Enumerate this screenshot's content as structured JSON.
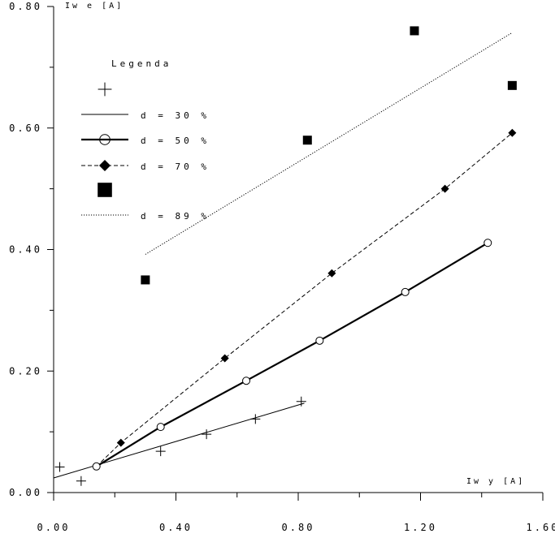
{
  "chart_data": {
    "type": "scatter",
    "title": "",
    "xlabel": "Iw y [A]",
    "ylabel": "Iw e [A]",
    "xlim": [
      0.0,
      1.6
    ],
    "ylim": [
      0.0,
      0.8
    ],
    "x_ticks": [
      "0.00",
      "0.40",
      "0.80",
      "1.20",
      "1.60"
    ],
    "y_ticks": [
      "0.00",
      "0.20",
      "0.40",
      "0.60",
      "0.80"
    ],
    "grid": false,
    "legend_position": "top-left",
    "legend": {
      "title": "Legenda",
      "entries": [
        "d = 30 %",
        "d = 50 %",
        "d = 70 %",
        "d = 89 %"
      ]
    },
    "series": [
      {
        "name": "d = 30 %",
        "marker": "plus",
        "line": "solid-thin",
        "points": [
          [
            0.02,
            0.042
          ],
          [
            0.09,
            0.019
          ],
          [
            0.35,
            0.068
          ],
          [
            0.5,
            0.096
          ],
          [
            0.66,
            0.121
          ],
          [
            0.81,
            0.15
          ]
        ],
        "fit": [
          [
            0.0,
            0.024
          ],
          [
            0.82,
            0.147
          ]
        ]
      },
      {
        "name": "d = 50 %",
        "marker": "circle",
        "line": "solid-thick",
        "points": [
          [
            0.14,
            0.043
          ],
          [
            0.35,
            0.108
          ],
          [
            0.63,
            0.184
          ],
          [
            0.87,
            0.25
          ],
          [
            1.15,
            0.33
          ],
          [
            1.42,
            0.411
          ]
        ],
        "fit": [
          [
            0.14,
            0.043
          ],
          [
            0.35,
            0.108
          ],
          [
            0.63,
            0.184
          ],
          [
            0.87,
            0.25
          ],
          [
            1.15,
            0.33
          ],
          [
            1.42,
            0.411
          ]
        ]
      },
      {
        "name": "d = 70 %",
        "marker": "diamond",
        "line": "dashed",
        "points": [
          [
            0.22,
            0.082
          ],
          [
            0.56,
            0.221
          ],
          [
            0.91,
            0.361
          ],
          [
            1.28,
            0.5
          ],
          [
            1.5,
            0.592
          ]
        ],
        "fit": [
          [
            0.14,
            0.043
          ],
          [
            0.22,
            0.082
          ],
          [
            0.56,
            0.221
          ],
          [
            0.91,
            0.361
          ],
          [
            1.28,
            0.5
          ],
          [
            1.5,
            0.592
          ]
        ]
      },
      {
        "name": "d = 89 %",
        "marker": "square",
        "line": "dotted",
        "points": [
          [
            0.3,
            0.35
          ],
          [
            0.83,
            0.58
          ],
          [
            1.18,
            0.76
          ],
          [
            1.5,
            0.67
          ]
        ],
        "fit": [
          [
            0.3,
            0.392
          ],
          [
            1.5,
            0.757
          ]
        ]
      }
    ]
  }
}
